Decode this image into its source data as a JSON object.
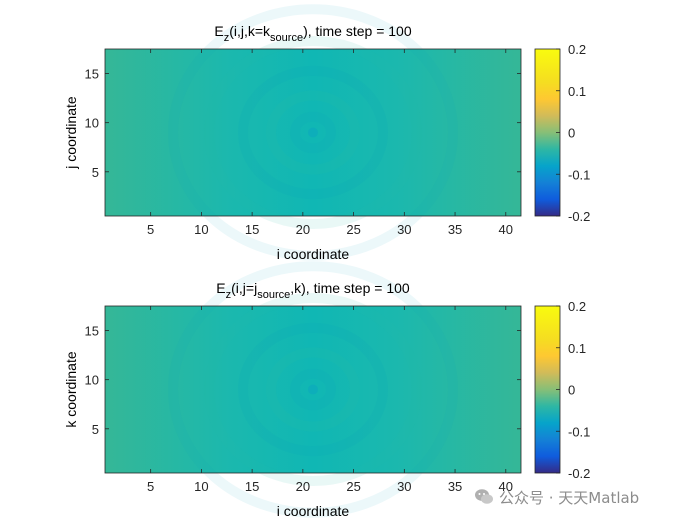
{
  "chart_data": [
    {
      "type": "heatmap",
      "title": {
        "prefix": "E",
        "prefix_sub": "z",
        "mid": "(i,j,k=k",
        "mid_sub": "source",
        "suffix": "), time step = 100"
      },
      "xlabel": "i coordinate",
      "ylabel": "j coordinate",
      "xlim": [
        0.5,
        41.5
      ],
      "ylim": [
        0.5,
        17.5
      ],
      "xticks": [
        5,
        10,
        15,
        20,
        25,
        30,
        35,
        40
      ],
      "yticks": [
        5,
        10,
        15
      ],
      "colormap": "parula",
      "clim": [
        -0.2,
        0.2
      ],
      "colorbar_ticks": [
        0.2,
        0.1,
        0,
        -0.1,
        -0.2
      ],
      "colorbar_labels": [
        "0.2",
        "0.1",
        "0",
        "-0.1",
        "-0.2"
      ],
      "source_position": [
        21,
        9
      ],
      "field_description": "field values near 0 everywhere, with faint concentric ripples centered on the source",
      "values_near": 0.02
    },
    {
      "type": "heatmap",
      "title": {
        "prefix": "E",
        "prefix_sub": "z",
        "mid": "(i,j=j",
        "mid_sub": "source",
        "suffix": ",k), time step = 100"
      },
      "xlabel": "i coordinate",
      "ylabel": "k coordinate",
      "xlim": [
        0.5,
        41.5
      ],
      "ylim": [
        0.5,
        17.5
      ],
      "xticks": [
        5,
        10,
        15,
        20,
        25,
        30,
        35,
        40
      ],
      "yticks": [
        5,
        10,
        15
      ],
      "colormap": "parula",
      "clim": [
        -0.2,
        0.2
      ],
      "colorbar_ticks": [
        0.2,
        0.1,
        0,
        -0.1,
        -0.2
      ],
      "colorbar_labels": [
        "0.2",
        "0.1",
        "0",
        "-0.1",
        "-0.2"
      ],
      "source_position": [
        21,
        9
      ],
      "field_description": "field values near 0 everywhere, with faint concentric ripples centered on the source",
      "values_near": 0.02
    }
  ],
  "watermark": {
    "text": "公众号 · 天天Matlab",
    "icon": "wechat-icon"
  }
}
